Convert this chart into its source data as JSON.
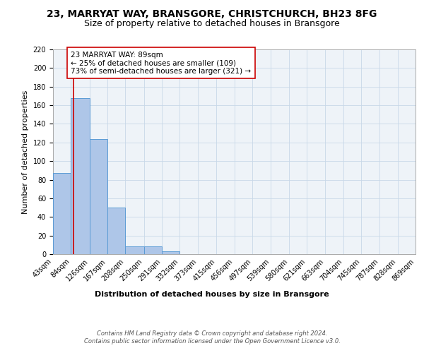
{
  "title_line1": "23, MARRYAT WAY, BRANSGORE, CHRISTCHURCH, BH23 8FG",
  "title_line2": "Size of property relative to detached houses in Bransgore",
  "xlabel": "Distribution of detached houses by size in Bransgore",
  "ylabel": "Number of detached properties",
  "bin_edges": [
    43,
    84,
    126,
    167,
    208,
    250,
    291,
    332,
    373,
    415,
    456,
    497,
    539,
    580,
    621,
    663,
    704,
    745,
    787,
    828,
    869
  ],
  "bar_heights": [
    87,
    168,
    124,
    50,
    8,
    8,
    3,
    0,
    0,
    0,
    0,
    0,
    0,
    0,
    0,
    0,
    0,
    0,
    0,
    0
  ],
  "bar_color": "#aec6e8",
  "bar_edge_color": "#5b9bd5",
  "property_size": 89,
  "annotation_text": "23 MARRYAT WAY: 89sqm\n← 25% of detached houses are smaller (109)\n73% of semi-detached houses are larger (321) →",
  "annotation_box_color": "#ffffff",
  "annotation_box_edge_color": "#cc0000",
  "vline_color": "#cc0000",
  "ylim": [
    0,
    220
  ],
  "yticks": [
    0,
    20,
    40,
    60,
    80,
    100,
    120,
    140,
    160,
    180,
    200,
    220
  ],
  "footer_text": "Contains HM Land Registry data © Crown copyright and database right 2024.\nContains public sector information licensed under the Open Government Licence v3.0.",
  "title1_fontsize": 10,
  "title2_fontsize": 9,
  "axis_label_fontsize": 8,
  "tick_fontsize": 7,
  "annotation_fontsize": 7.5
}
